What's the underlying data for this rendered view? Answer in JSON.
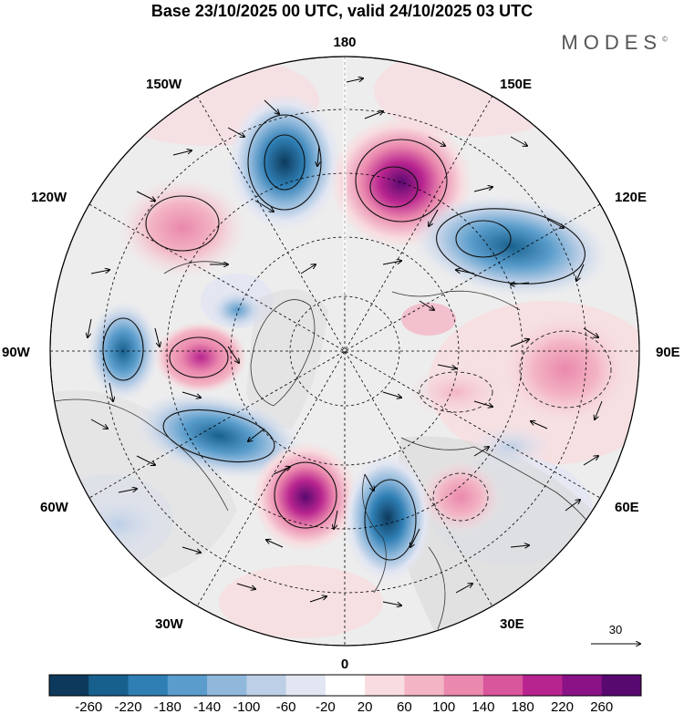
{
  "title": "Base 23/10/2025 00 UTC, valid 24/10/2025 03 UTC",
  "brand": "MODES",
  "brand_mark": "©",
  "longitude_labels": {
    "top": "180",
    "bottom": "0",
    "left": "90W",
    "right": "90E",
    "upper_left_150": "150W",
    "upper_right_150": "150E",
    "upper_left_120": "120W",
    "upper_right_120": "120E",
    "lower_left_60": "60W",
    "lower_right_60": "60E",
    "lower_left_30": "30W",
    "lower_right_30": "30E"
  },
  "wind_reference": "30",
  "colorbar": {
    "labels": [
      "-260",
      "-220",
      "-180",
      "-140",
      "-100",
      "-60",
      "-20",
      "20",
      "60",
      "100",
      "140",
      "180",
      "220",
      "260"
    ],
    "colors": [
      "#0d3a5c",
      "#17608e",
      "#2f7fb5",
      "#5a9dcc",
      "#8fb8db",
      "#bccfe6",
      "#e2e6f2",
      "#ffffff",
      "#f8dcdf",
      "#f3b5c4",
      "#ea88ad",
      "#d9559c",
      "#b8248f",
      "#8a1286",
      "#58096f"
    ]
  },
  "colors": {
    "coastline": "#333333",
    "land_shade": "#d8d8d8",
    "ocean_shade": "#ececec"
  }
}
